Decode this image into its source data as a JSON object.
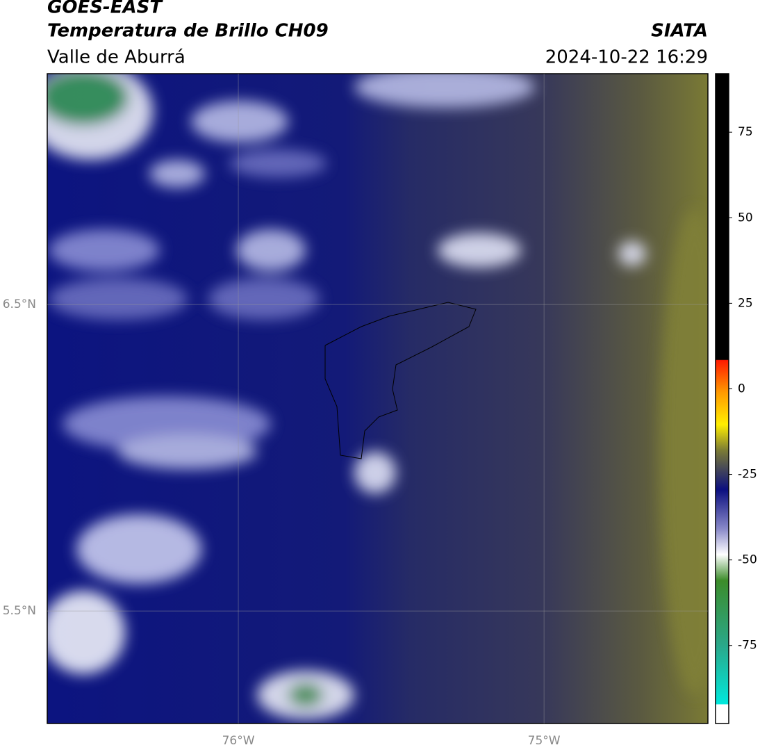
{
  "header": {
    "title": "GOES-EAST",
    "subtitle": "Temperatura de Brillo CH09",
    "region": "Valle de Aburrá",
    "source": "SIATA",
    "datetime": "2024-10-22 16:29"
  },
  "map": {
    "xlim": [
      -76.625,
      -74.464
    ],
    "ylim": [
      5.133,
      7.253
    ],
    "xticks": [
      {
        "value": -76,
        "label": "76°W"
      },
      {
        "value": -75,
        "label": "75°W"
      }
    ],
    "yticks": [
      {
        "value": 6.5,
        "label": "6.5°N"
      },
      {
        "value": 5.5,
        "label": "5.5°N"
      }
    ]
  },
  "colorbar": {
    "lim": [
      -97.8,
      92.1
    ],
    "ticks": [
      75,
      50,
      25,
      0,
      -25,
      -50,
      -75
    ]
  }
}
